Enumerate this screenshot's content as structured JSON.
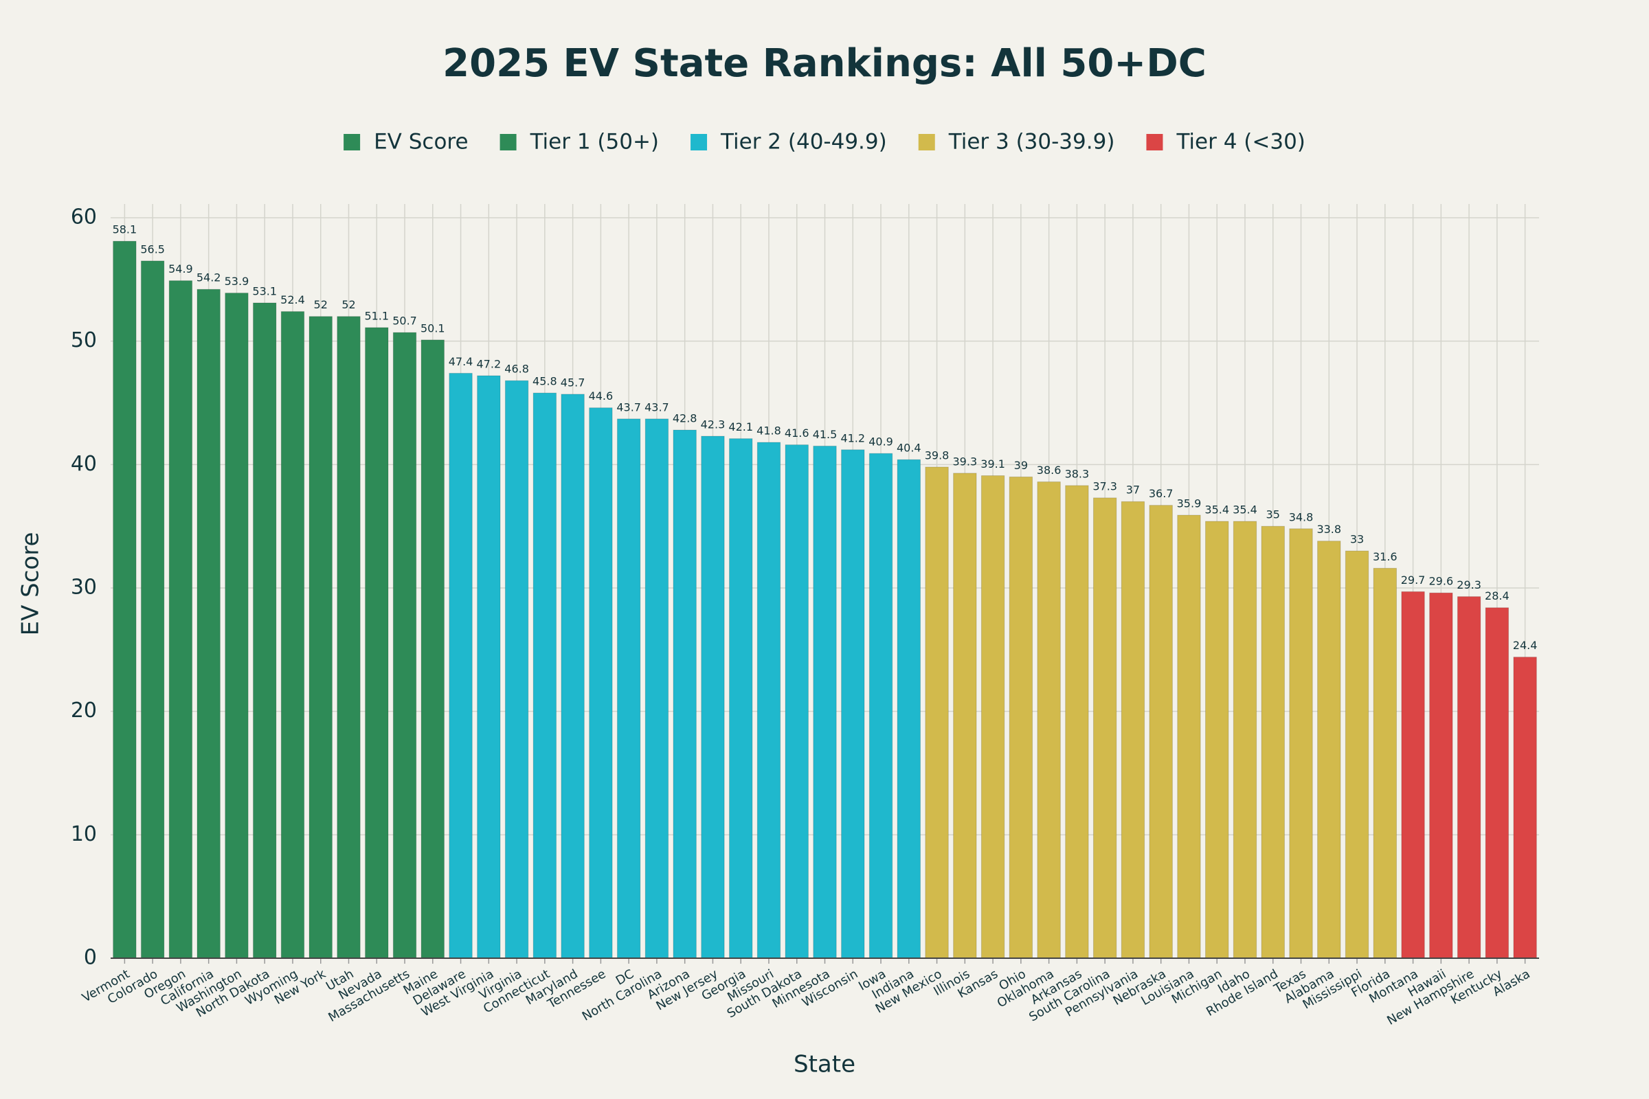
{
  "chart_data": {
    "type": "bar",
    "title": "2025 EV State Rankings: All 50+DC",
    "x_label": "State",
    "y_label": "EV Score",
    "legend": [
      {
        "name": "EV Score",
        "color": "#2e8b57"
      },
      {
        "name": "Tier 1 (50+)",
        "color": "#2e8b57"
      },
      {
        "name": "Tier 2 (40-49.9)",
        "color": "#1fb8cd"
      },
      {
        "name": "Tier 3 (30-39.9)",
        "color": "#d2ba4c"
      },
      {
        "name": "Tier 4 (<30)",
        "color": "#db4545"
      }
    ],
    "categories": [
      "Vermont",
      "Colorado",
      "Oregon",
      "California",
      "Washington",
      "North Dakota",
      "Wyoming",
      "New York",
      "Utah",
      "Nevada",
      "Massachusetts",
      "Maine",
      "Delaware",
      "West Virginia",
      "Virginia",
      "Connecticut",
      "Maryland",
      "Tennessee",
      "DC",
      "North Carolina",
      "Arizona",
      "New Jersey",
      "Georgia",
      "Missouri",
      "South Dakota",
      "Minnesota",
      "Wisconsin",
      "Iowa",
      "Indiana",
      "New Mexico",
      "Illinois",
      "Kansas",
      "Ohio",
      "Oklahoma",
      "Arkansas",
      "South Carolina",
      "Pennsylvania",
      "Nebraska",
      "Louisiana",
      "Michigan",
      "Idaho",
      "Rhode Island",
      "Texas",
      "Alabama",
      "Mississippi",
      "Florida",
      "Montana",
      "Hawaii",
      "New Hampshire",
      "Kentucky",
      "Alaska"
    ],
    "values": [
      58.1,
      56.5,
      54.9,
      54.2,
      53.9,
      53.1,
      52.4,
      52,
      52,
      51.1,
      50.7,
      50.1,
      47.4,
      47.2,
      46.8,
      45.8,
      45.7,
      44.6,
      43.7,
      43.7,
      42.8,
      42.3,
      42.1,
      41.8,
      41.6,
      41.5,
      41.2,
      40.9,
      40.4,
      39.8,
      39.3,
      39.1,
      39,
      38.6,
      38.3,
      37.3,
      37,
      36.7,
      35.9,
      35.4,
      35.4,
      35,
      34.8,
      33.8,
      33,
      31.6,
      29.7,
      29.6,
      29.3,
      28.4,
      24.4
    ],
    "colors": [
      "#2e8b57",
      "#2e8b57",
      "#2e8b57",
      "#2e8b57",
      "#2e8b57",
      "#2e8b57",
      "#2e8b57",
      "#2e8b57",
      "#2e8b57",
      "#2e8b57",
      "#2e8b57",
      "#2e8b57",
      "#1fb8cd",
      "#1fb8cd",
      "#1fb8cd",
      "#1fb8cd",
      "#1fb8cd",
      "#1fb8cd",
      "#1fb8cd",
      "#1fb8cd",
      "#1fb8cd",
      "#1fb8cd",
      "#1fb8cd",
      "#1fb8cd",
      "#1fb8cd",
      "#1fb8cd",
      "#1fb8cd",
      "#1fb8cd",
      "#1fb8cd",
      "#d2ba4c",
      "#d2ba4c",
      "#d2ba4c",
      "#d2ba4c",
      "#d2ba4c",
      "#d2ba4c",
      "#d2ba4c",
      "#d2ba4c",
      "#d2ba4c",
      "#d2ba4c",
      "#d2ba4c",
      "#d2ba4c",
      "#d2ba4c",
      "#d2ba4c",
      "#d2ba4c",
      "#d2ba4c",
      "#d2ba4c",
      "#db4545",
      "#db4545",
      "#db4545",
      "#db4545",
      "#db4545"
    ],
    "ylim": [
      0,
      60
    ],
    "yticks": [
      0,
      10,
      20,
      30,
      40,
      50,
      60
    ],
    "grid": true
  }
}
